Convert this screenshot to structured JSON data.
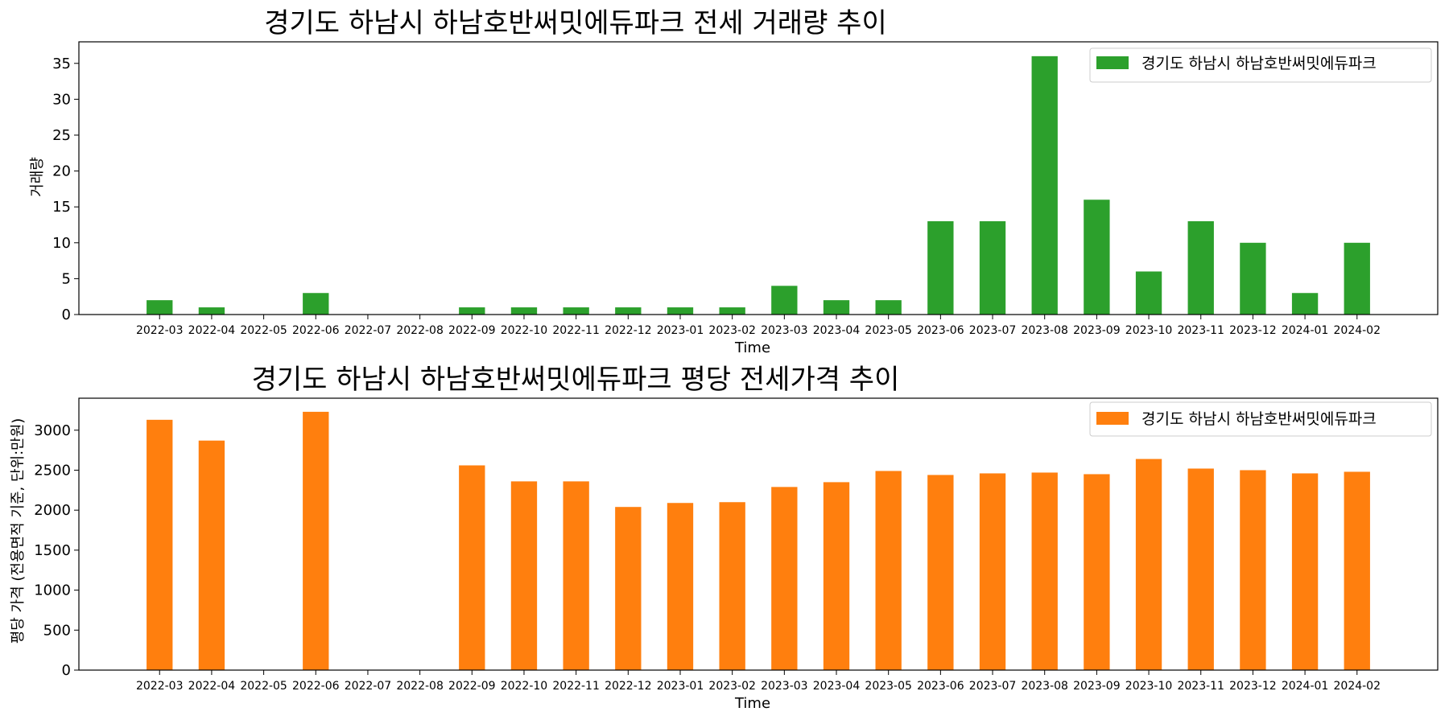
{
  "chart_data": [
    {
      "type": "bar",
      "title": "경기도 하남시 하남호반써밋에듀파크 전세 거래량 추이",
      "xlabel": "Time",
      "ylabel": "거래량",
      "ylim": [
        0,
        38
      ],
      "yticks": [
        0,
        5,
        10,
        15,
        20,
        25,
        30,
        35
      ],
      "grid": false,
      "legend_position": "top-right",
      "categories": [
        "2022-03",
        "2022-04",
        "2022-05",
        "2022-06",
        "2022-07",
        "2022-08",
        "2022-09",
        "2022-10",
        "2022-11",
        "2022-12",
        "2023-01",
        "2023-02",
        "2023-03",
        "2023-04",
        "2023-05",
        "2023-06",
        "2023-07",
        "2023-08",
        "2023-09",
        "2023-10",
        "2023-11",
        "2023-12",
        "2024-01",
        "2024-02"
      ],
      "series": [
        {
          "name": "경기도 하남시 하남호반써밋에듀파크",
          "color": "#2ca02c",
          "values": [
            2,
            1,
            0,
            3,
            0,
            0,
            1,
            1,
            1,
            1,
            1,
            1,
            4,
            2,
            2,
            13,
            13,
            36,
            16,
            6,
            13,
            10,
            3,
            10
          ]
        }
      ]
    },
    {
      "type": "bar",
      "title": "경기도 하남시 하남호반써밋에듀파크 평당 전세가격 추이",
      "xlabel": "Time",
      "ylabel": "평당 가격 (전용면적 기준, 단위:만원)",
      "ylim": [
        0,
        3400
      ],
      "yticks": [
        0,
        500,
        1000,
        1500,
        2000,
        2500,
        3000
      ],
      "grid": false,
      "legend_position": "top-right",
      "categories": [
        "2022-03",
        "2022-04",
        "2022-05",
        "2022-06",
        "2022-07",
        "2022-08",
        "2022-09",
        "2022-10",
        "2022-11",
        "2022-12",
        "2023-01",
        "2023-02",
        "2023-03",
        "2023-04",
        "2023-05",
        "2023-06",
        "2023-07",
        "2023-08",
        "2023-09",
        "2023-10",
        "2023-11",
        "2023-12",
        "2024-01",
        "2024-02"
      ],
      "series": [
        {
          "name": "경기도 하남시 하남호반써밋에듀파크",
          "color": "#ff7f0e",
          "values": [
            3130,
            2870,
            null,
            3230,
            null,
            null,
            2560,
            2360,
            2360,
            2040,
            2090,
            2100,
            2290,
            2350,
            2490,
            2440,
            2460,
            2470,
            2450,
            2640,
            2520,
            2500,
            2460,
            2480
          ]
        }
      ]
    }
  ]
}
